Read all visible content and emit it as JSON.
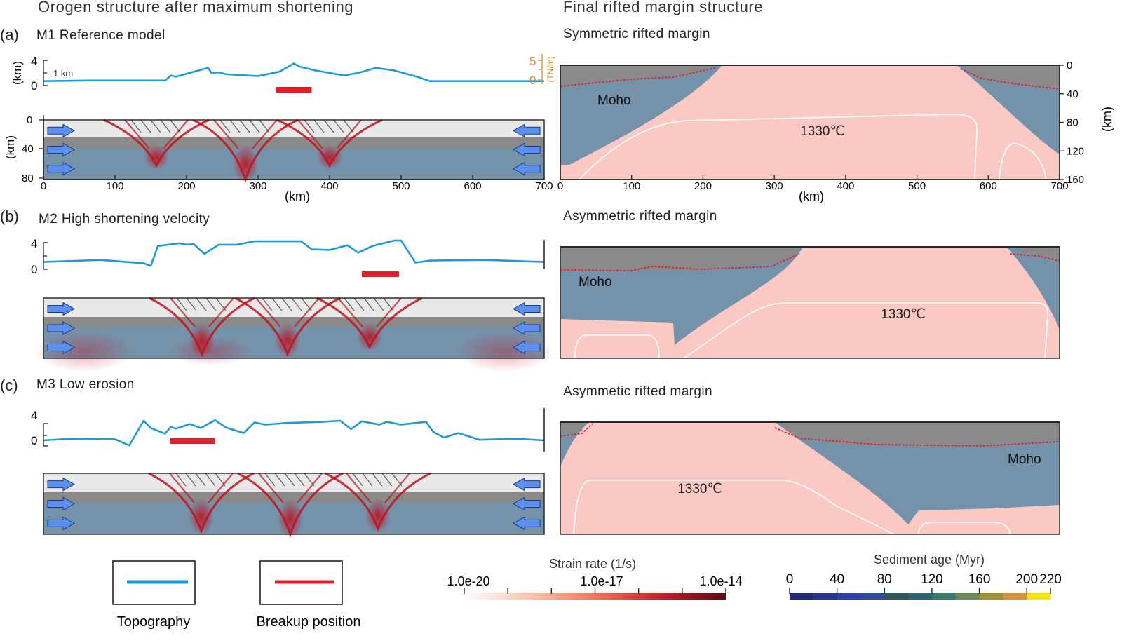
{
  "figure": {
    "left_column_title": "Orogen structure after maximum shortening",
    "right_column_title": "Final rifted margin structure",
    "colors": {
      "topography": "#1e9bd7",
      "breakup": "#e0202a",
      "upper_crust": "#e9e9e9",
      "lower_crust": "#8a8a8a",
      "mantle_lithosphere": "#7592ab",
      "asthenosphere": "#fbc9c4",
      "strain": "#c0101c",
      "moho_line": "#e02030",
      "isotherm": "#ffffff",
      "tn_axis": "#e08a2a",
      "arrow_fill": "#5b8ff0"
    },
    "panels": [
      {
        "label": "(a)",
        "title": "M1 Reference model",
        "margin_title": "Symmetric rifted margin",
        "topo_ylabel": "(km)",
        "topo_ticks": [
          "4",
          "0"
        ],
        "topo_scale_note": "1 km",
        "breakup_range_km": [
          325,
          375
        ],
        "section_ylabel": "(km)",
        "section_yticks": [
          "0",
          "40",
          "80"
        ],
        "section_xticks": [
          "0",
          "100",
          "200",
          "300",
          "400",
          "500",
          "600",
          "700"
        ],
        "section_xlabel": "(km)",
        "tn_ticks": [
          "5",
          "0"
        ],
        "tn_label": "(TN/m)",
        "moho_label": "Moho",
        "isotherm_label": "1330℃",
        "margin_xticks": [
          "0",
          "100",
          "200",
          "300",
          "400",
          "500",
          "600",
          "700"
        ],
        "margin_xlabel": "(km)",
        "margin_yticks": [
          "0",
          "40",
          "80",
          "120",
          "160"
        ],
        "margin_ylabel": "(km)"
      },
      {
        "label": "(b)",
        "title": "M2 High shortening velocity",
        "margin_title": "Asymmetric rifted margin",
        "topo_ticks": [
          "4",
          "0"
        ],
        "breakup_range_km": [
          445,
          497
        ],
        "moho_label": "Moho",
        "isotherm_label": "1330℃"
      },
      {
        "label": "(c)",
        "title": "M3 Low erosion",
        "margin_title": "Asymmetic rifted margin",
        "topo_ticks": [
          "4",
          "0"
        ],
        "breakup_range_km": [
          177,
          240
        ],
        "moho_label": "Moho",
        "isotherm_label": "1330℃"
      }
    ],
    "legend": {
      "topography_label": "Topography",
      "breakup_label": "Breakup position"
    },
    "strain_colorbar": {
      "title": "Strain rate  (1/s)",
      "labels": [
        "1.0e-20",
        "1.0e-17",
        "1.0e-14"
      ],
      "range": [
        "1.0e-20",
        "1.0e-14"
      ],
      "tick_count": 7
    },
    "age_colorbar": {
      "title": "Sediment age (Myr)",
      "labels": [
        "0",
        "40",
        "80",
        "120",
        "160",
        "200",
        "220"
      ],
      "colors": [
        "#1f2a78",
        "#2a3592",
        "#3040a8",
        "#2f4a9a",
        "#2e5560",
        "#2d6470",
        "#3e7a6e",
        "#6d8a55",
        "#9e9035",
        "#d4923e",
        "#f3e60e"
      ]
    }
  },
  "chart_data": [
    {
      "type": "line",
      "title": "M1 Reference model topography",
      "xlabel": "(km)",
      "ylabel": "(km)",
      "xlim": [
        0,
        700
      ],
      "ylim": [
        0,
        4
      ],
      "x": [
        0,
        60,
        170,
        178,
        185,
        230,
        235,
        245,
        255,
        300,
        330,
        350,
        358,
        380,
        420,
        440,
        465,
        490,
        525,
        540,
        600,
        700
      ],
      "y": [
        0.7,
        0.8,
        0.8,
        1.6,
        1.4,
        2.8,
        2.0,
        2.1,
        1.8,
        1.5,
        2.2,
        3.5,
        3.0,
        2.4,
        1.6,
        2.0,
        2.8,
        2.4,
        1.3,
        0.7,
        0.7,
        0.7
      ]
    },
    {
      "type": "line",
      "title": "M2 High shortening velocity topography",
      "xlabel": "(km)",
      "ylabel": "(km)",
      "xlim": [
        0,
        700
      ],
      "ylim": [
        0,
        4
      ],
      "x": [
        0,
        80,
        140,
        150,
        160,
        190,
        200,
        210,
        225,
        245,
        270,
        295,
        320,
        360,
        375,
        400,
        425,
        440,
        460,
        490,
        500,
        520,
        540,
        620,
        700
      ],
      "y": [
        1.1,
        1.4,
        0.9,
        0.5,
        3.5,
        3.9,
        3.7,
        3.8,
        2.3,
        3.7,
        3.7,
        4.2,
        4.2,
        4.2,
        3.0,
        2.9,
        3.6,
        2.5,
        3.5,
        4.3,
        4.3,
        1.0,
        1.3,
        1.4,
        1.1
      ]
    },
    {
      "type": "line",
      "title": "M3 Low erosion topography",
      "xlabel": "(km)",
      "ylabel": "(km)",
      "xlim": [
        0,
        700
      ],
      "ylim": [
        0,
        4
      ],
      "x": [
        0,
        40,
        100,
        120,
        140,
        150,
        170,
        178,
        185,
        205,
        220,
        240,
        255,
        280,
        295,
        310,
        340,
        390,
        415,
        430,
        445,
        470,
        480,
        500,
        535,
        545,
        560,
        580,
        610,
        660,
        700
      ],
      "y": [
        1.0,
        1.3,
        1.2,
        0.1,
        4.5,
        3.2,
        2.2,
        3.4,
        3.1,
        3.9,
        3.2,
        4.6,
        3.3,
        2.3,
        4.2,
        3.8,
        4.1,
        4.3,
        4.5,
        3.0,
        4.4,
        3.8,
        4.3,
        3.8,
        4.3,
        2.5,
        1.5,
        2.3,
        1.1,
        1.3,
        1.0
      ]
    }
  ]
}
